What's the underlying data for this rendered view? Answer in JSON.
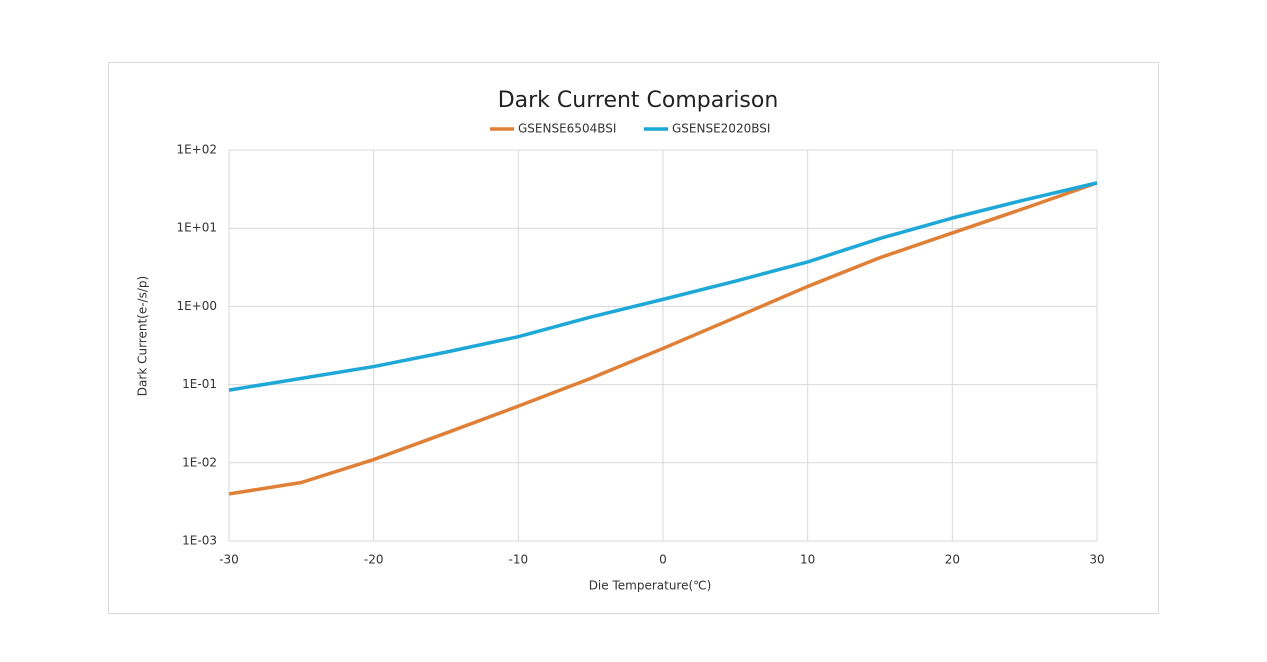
{
  "chart_data": {
    "type": "line",
    "title": "Dark Current Comparison",
    "x_label": "Die Temperature(℃)",
    "y_label": "Dark Current(e-/s/p)",
    "log_y": true,
    "grid": true,
    "legend": "top",
    "x": [
      -30,
      -25,
      -20,
      -15,
      -10,
      -5,
      0,
      5,
      10,
      15,
      20,
      25,
      30
    ],
    "series": [
      {
        "name": "GSENSE6504BSI",
        "color": "#e07f36",
        "values": [
          0.004,
          0.0056,
          0.011,
          0.024,
          0.053,
          0.12,
          0.29,
          0.72,
          1.8,
          4.2,
          8.7,
          18,
          38
        ]
      },
      {
        "name": "GSENSE2020BSI",
        "color": "#1ea8d8",
        "values": [
          0.085,
          0.12,
          0.17,
          0.26,
          0.41,
          0.73,
          1.23,
          2.1,
          3.7,
          7.4,
          13.5,
          23,
          38
        ]
      }
    ],
    "xlim": [
      -30,
      30
    ],
    "xticks": [
      -30,
      -20,
      -10,
      0,
      10,
      20,
      30
    ],
    "ylim": [
      0.001,
      100
    ],
    "yticks": [
      {
        "value": 0.001,
        "label": "1E-03"
      },
      {
        "value": 0.01,
        "label": "1E-02"
      },
      {
        "value": 0.1,
        "label": "1E-01"
      },
      {
        "value": 1,
        "label": "1E+00"
      },
      {
        "value": 10,
        "label": "1E+01"
      },
      {
        "value": 100,
        "label": "1E+02"
      }
    ]
  }
}
